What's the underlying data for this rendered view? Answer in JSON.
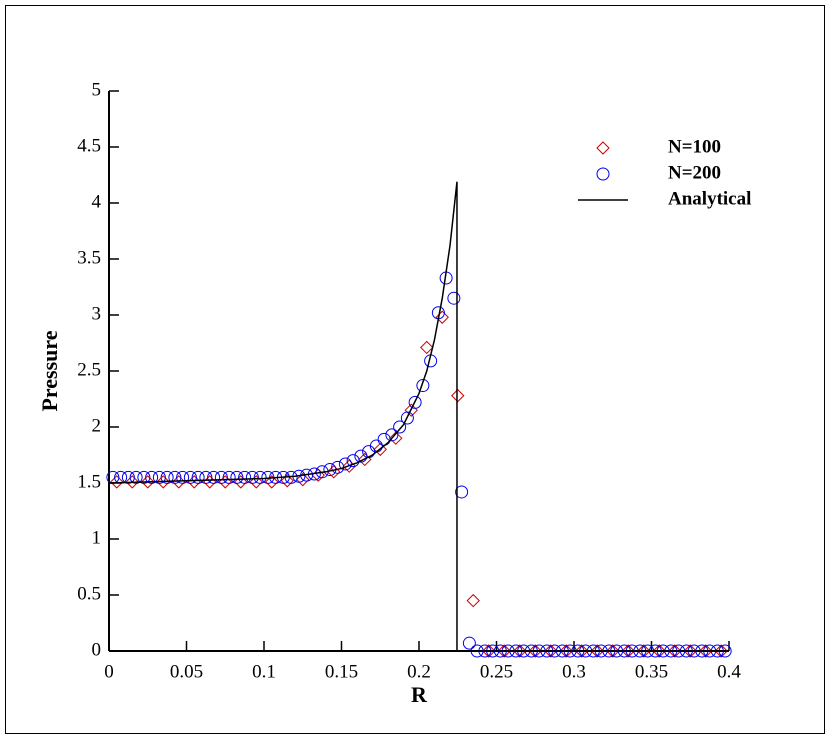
{
  "chart_data": {
    "type": "scatter",
    "xlabel": "R",
    "ylabel": "Pressure",
    "xlim": [
      0,
      0.4
    ],
    "ylim": [
      0,
      5
    ],
    "xticks": [
      0,
      0.05,
      0.1,
      0.15,
      0.2,
      0.25,
      0.3,
      0.35,
      0.4
    ],
    "yticks": [
      0,
      0.5,
      1,
      1.5,
      2,
      2.5,
      3,
      3.5,
      4,
      4.5,
      5
    ],
    "legend": "upper right",
    "series": [
      {
        "name": "N=100",
        "color": "#cc0000",
        "marker": "diamond",
        "x": [
          0.005,
          0.015,
          0.025,
          0.035,
          0.045,
          0.055,
          0.065,
          0.075,
          0.085,
          0.095,
          0.105,
          0.115,
          0.125,
          0.135,
          0.145,
          0.155,
          0.165,
          0.175,
          0.185,
          0.195,
          0.205,
          0.215,
          0.225,
          0.235,
          0.245,
          0.255,
          0.265,
          0.275,
          0.285,
          0.295,
          0.305,
          0.315,
          0.325,
          0.335,
          0.345,
          0.355,
          0.365,
          0.375,
          0.385,
          0.395
        ],
        "values": [
          1.51,
          1.51,
          1.51,
          1.51,
          1.51,
          1.51,
          1.51,
          1.51,
          1.51,
          1.51,
          1.51,
          1.52,
          1.53,
          1.57,
          1.6,
          1.65,
          1.71,
          1.8,
          1.9,
          2.15,
          2.71,
          2.98,
          2.28,
          0.45,
          0,
          0,
          0,
          0,
          0,
          0,
          0,
          0,
          0,
          0,
          0,
          0,
          0,
          0,
          0,
          0
        ]
      },
      {
        "name": "N=200",
        "color": "#0000ee",
        "marker": "circle",
        "x": [
          0.0025,
          0.0075,
          0.0125,
          0.0175,
          0.0225,
          0.0275,
          0.0325,
          0.0375,
          0.0425,
          0.0475,
          0.0525,
          0.0575,
          0.0625,
          0.0675,
          0.0725,
          0.0775,
          0.0825,
          0.0875,
          0.0925,
          0.0975,
          0.1025,
          0.1075,
          0.1125,
          0.1175,
          0.1225,
          0.1275,
          0.1325,
          0.1375,
          0.1425,
          0.1475,
          0.1525,
          0.1575,
          0.1625,
          0.1675,
          0.1725,
          0.1775,
          0.1825,
          0.1875,
          0.1925,
          0.1975,
          0.2025,
          0.2075,
          0.2125,
          0.2175,
          0.2225,
          0.2275,
          0.2325,
          0.2375,
          0.2425,
          0.2475,
          0.2525,
          0.2575,
          0.2625,
          0.2675,
          0.2725,
          0.2775,
          0.2825,
          0.2875,
          0.2925,
          0.2975,
          0.3025,
          0.3075,
          0.3125,
          0.3175,
          0.3225,
          0.3275,
          0.3325,
          0.3375,
          0.3425,
          0.3475,
          0.3525,
          0.3575,
          0.3625,
          0.3675,
          0.3725,
          0.3775,
          0.3825,
          0.3875,
          0.3925,
          0.3975
        ],
        "values": [
          1.55,
          1.55,
          1.55,
          1.55,
          1.55,
          1.55,
          1.55,
          1.55,
          1.55,
          1.55,
          1.55,
          1.55,
          1.55,
          1.55,
          1.55,
          1.55,
          1.55,
          1.55,
          1.55,
          1.55,
          1.55,
          1.55,
          1.55,
          1.55,
          1.56,
          1.57,
          1.58,
          1.6,
          1.62,
          1.64,
          1.67,
          1.7,
          1.74,
          1.78,
          1.83,
          1.89,
          1.93,
          2.0,
          2.08,
          2.22,
          2.37,
          2.59,
          3.02,
          3.33,
          3.15,
          1.42,
          0.07,
          0,
          0,
          0,
          0,
          0,
          0,
          0,
          0,
          0,
          0,
          0,
          0,
          0,
          0,
          0,
          0,
          0,
          0,
          0,
          0,
          0,
          0,
          0,
          0,
          0,
          0,
          0,
          0,
          0,
          0,
          0,
          0,
          0
        ]
      },
      {
        "name": "Analytical",
        "color": "#000000",
        "marker": "line",
        "x": [
          0,
          0.05,
          0.1,
          0.12,
          0.14,
          0.15,
          0.16,
          0.17,
          0.18,
          0.19,
          0.2,
          0.205,
          0.21,
          0.215,
          0.22,
          0.2245,
          0.2245,
          0.4
        ],
        "values": [
          1.5,
          1.52,
          1.54,
          1.56,
          1.6,
          1.63,
          1.68,
          1.75,
          1.86,
          2.02,
          2.3,
          2.5,
          2.78,
          3.15,
          3.62,
          4.19,
          0,
          0
        ]
      }
    ]
  }
}
